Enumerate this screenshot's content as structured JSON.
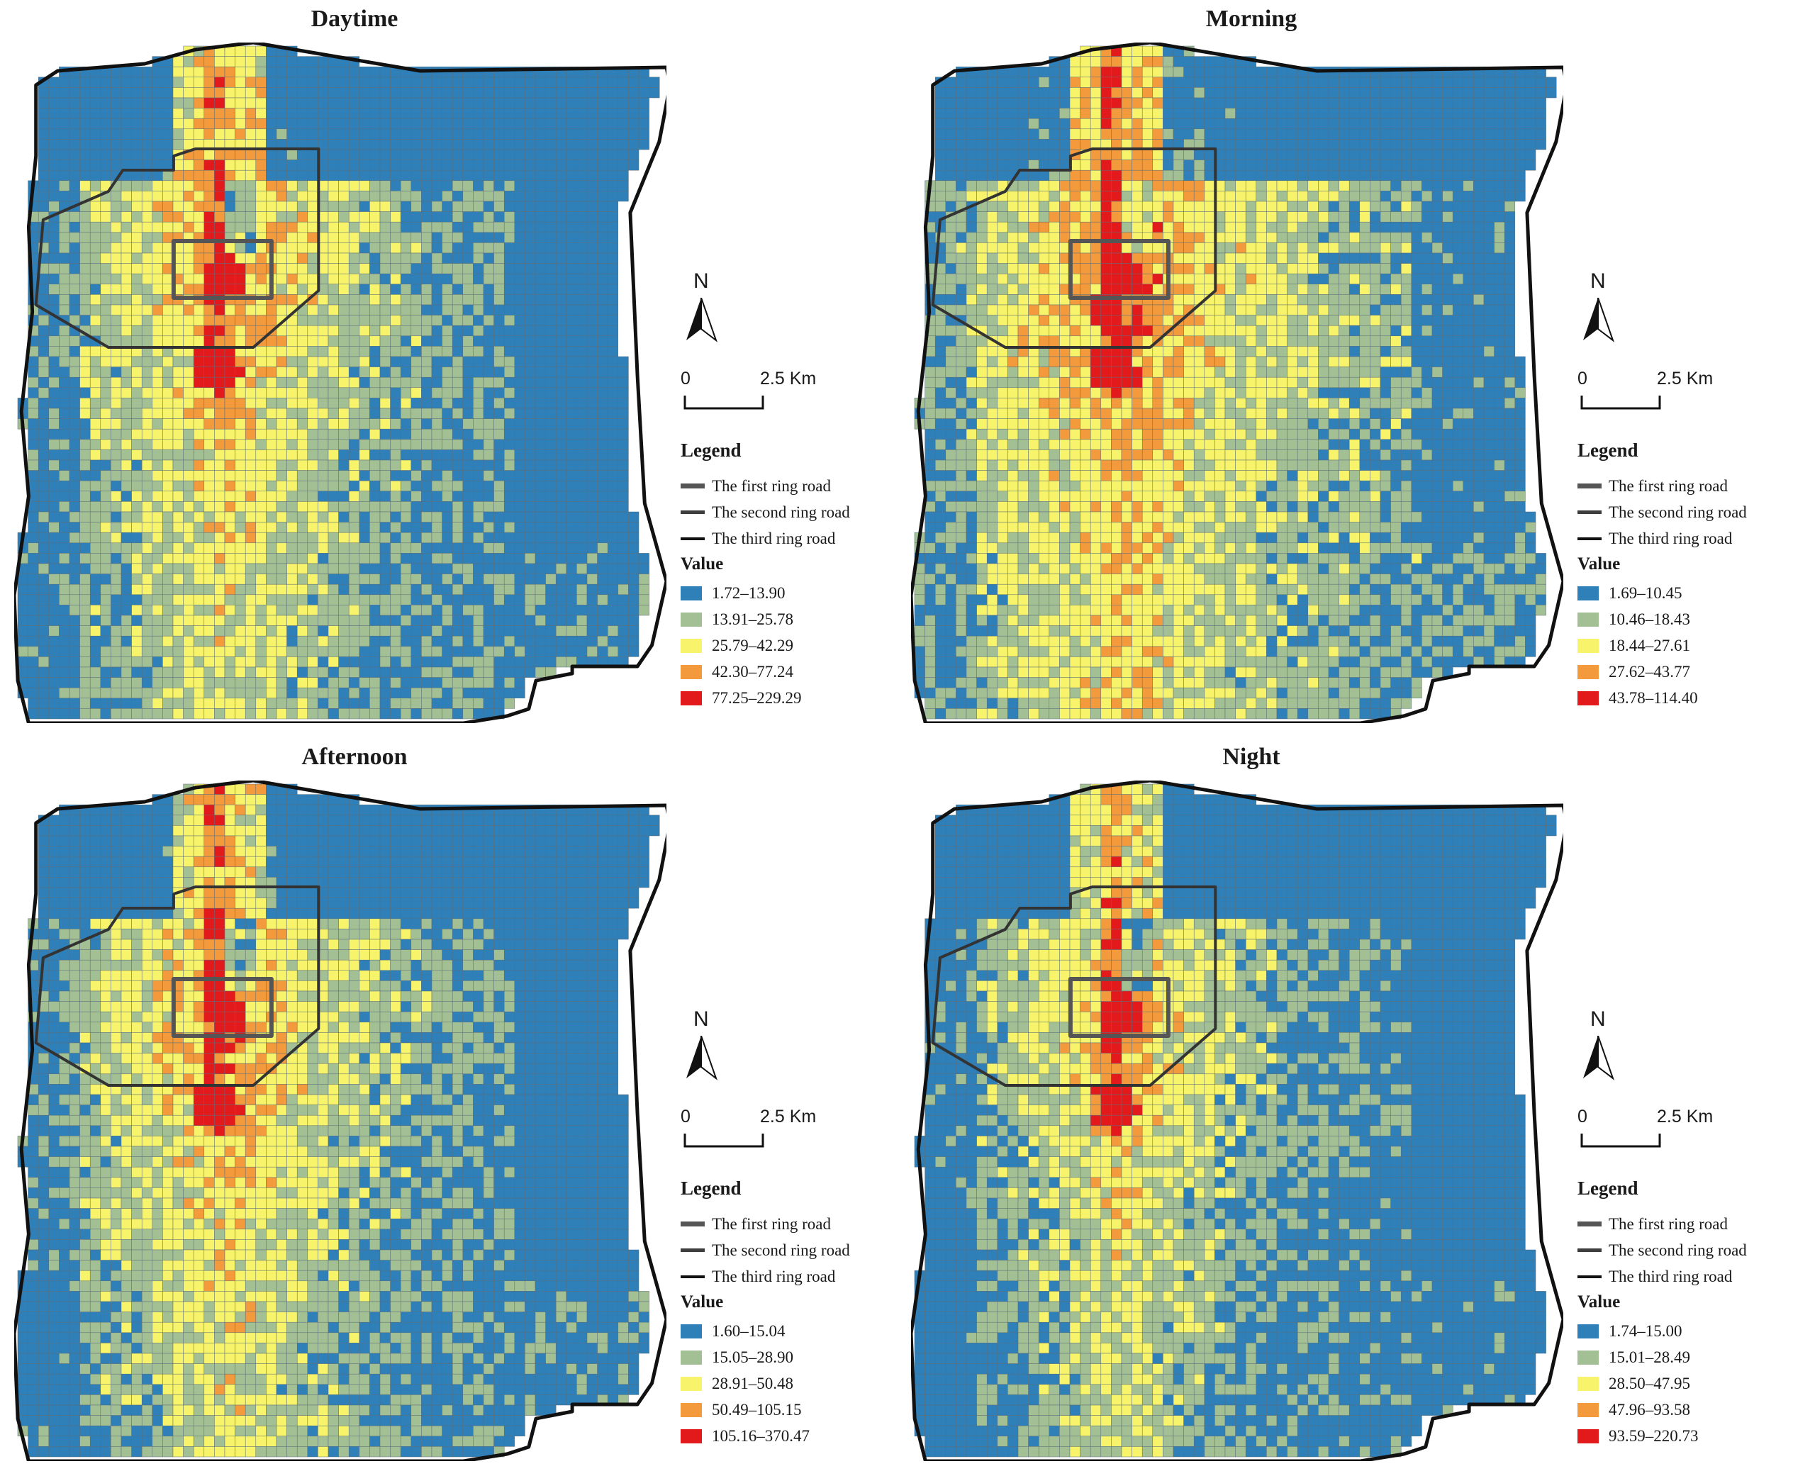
{
  "panels": [
    {
      "title": "Daytime",
      "legend_title": "Legend",
      "roads": [
        "The first ring road",
        "The second ring road",
        "The third ring road"
      ],
      "value_title": "Value",
      "classes": [
        "1.72–13.90",
        "13.91–25.78",
        "25.79–42.29",
        "42.30–77.24",
        "77.25–229.29"
      ],
      "north_label": "N",
      "scale_zero": "0",
      "scale_label": "2.5 Km"
    },
    {
      "title": "Morning",
      "legend_title": "Legend",
      "roads": [
        "The first ring road",
        "The second ring road",
        "The third ring road"
      ],
      "value_title": "Value",
      "classes": [
        "1.69–10.45",
        "10.46–18.43",
        "18.44–27.61",
        "27.62–43.77",
        "43.78–114.40"
      ],
      "north_label": "N",
      "scale_zero": "0",
      "scale_label": "2.5 Km"
    },
    {
      "title": "Afternoon",
      "legend_title": "Legend",
      "roads": [
        "The first ring road",
        "The second ring road",
        "The third ring road"
      ],
      "value_title": "Value",
      "classes": [
        "1.60–15.04",
        "15.05–28.90",
        "28.91–50.48",
        "50.49–105.15",
        "105.16–370.47"
      ],
      "north_label": "N",
      "scale_zero": "0",
      "scale_label": "2.5 Km"
    },
    {
      "title": "Night",
      "legend_title": "Legend",
      "roads": [
        "The first ring road",
        "The second ring road",
        "The third ring road"
      ],
      "value_title": "Value",
      "classes": [
        "1.74–15.00",
        "15.01–28.49",
        "28.50–47.95",
        "47.96–93.58",
        "93.59–220.73"
      ],
      "north_label": "N",
      "scale_zero": "0",
      "scale_label": "2.5 Km"
    }
  ],
  "class_colors": [
    "#2f7fb8",
    "#a3bf94",
    "#f7f36a",
    "#f39a3c",
    "#e31a1c"
  ]
}
